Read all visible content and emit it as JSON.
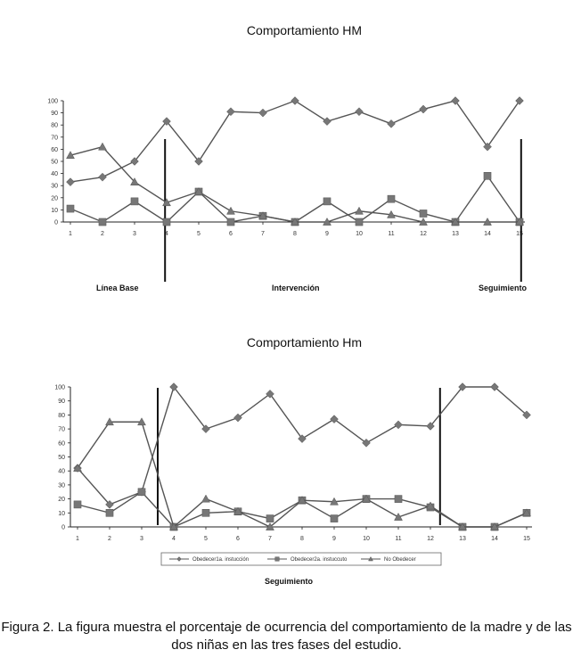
{
  "chart_data": [
    {
      "type": "line",
      "title": "Comportamiento HM",
      "x": [
        1,
        2,
        3,
        4,
        5,
        6,
        7,
        8,
        9,
        10,
        11,
        12,
        13,
        14,
        15
      ],
      "ylim": [
        0,
        100
      ],
      "yticks": [
        0,
        10,
        20,
        30,
        40,
        50,
        60,
        70,
        80,
        90,
        100
      ],
      "series": [
        {
          "marker": "diamond",
          "values": [
            33,
            37,
            50,
            83,
            50,
            91,
            90,
            100,
            83,
            91,
            81,
            93,
            100,
            62,
            100
          ]
        },
        {
          "marker": "square",
          "values": [
            11,
            0,
            17,
            0,
            25,
            0,
            5,
            0,
            17,
            0,
            19,
            7,
            0,
            38,
            0
          ]
        },
        {
          "marker": "triangle",
          "values": [
            55,
            62,
            33,
            16,
            25,
            9,
            5,
            0,
            0,
            9,
            6,
            0,
            0,
            0,
            0
          ]
        }
      ],
      "phase_lines_after_x": [
        3.95,
        15.05
      ],
      "phase_labels": [
        "Línea Base",
        "Intervención",
        "Seguimiento"
      ]
    },
    {
      "type": "line",
      "title": "Comportamiento Hm",
      "x": [
        1,
        2,
        3,
        4,
        5,
        6,
        7,
        8,
        9,
        10,
        11,
        12,
        13,
        14,
        15
      ],
      "ylim": [
        0,
        100
      ],
      "yticks": [
        0,
        10,
        20,
        30,
        40,
        50,
        60,
        70,
        80,
        90,
        100
      ],
      "series": [
        {
          "name": "Obedecer1a. instucción",
          "marker": "diamond",
          "values": [
            42,
            16,
            25,
            100,
            70,
            78,
            95,
            63,
            77,
            60,
            73,
            72,
            100,
            100,
            80
          ]
        },
        {
          "name": "Obedecer2a. instuccuto",
          "marker": "square",
          "values": [
            16,
            10,
            25,
            0,
            10,
            11,
            6,
            19,
            6,
            20,
            20,
            14,
            0,
            0,
            10
          ]
        },
        {
          "name": "No Obedecer",
          "marker": "triangle",
          "values": [
            42,
            75,
            75,
            0,
            20,
            11,
            0,
            19,
            18,
            20,
            7,
            15,
            0,
            0,
            10
          ]
        }
      ],
      "phase_lines_after_x": [
        3.5,
        12.3
      ],
      "phase_labels": [
        "Seguimiento"
      ]
    }
  ],
  "caption": "Figura 2. La figura muestra el porcentaje de ocurrencia del comportamiento de la madre y de las dos niñas en las tres fases del estudio."
}
